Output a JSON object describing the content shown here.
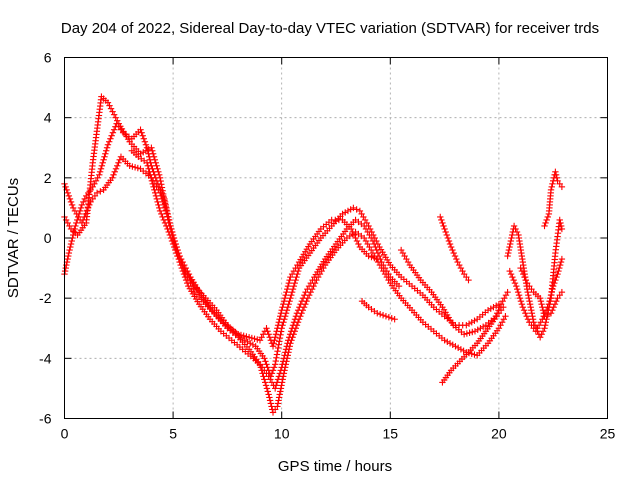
{
  "chart_data": {
    "type": "scatter",
    "title": "Day 204 of 2022, Sidereal Day-to-day VTEC variation (SDTVAR) for receiver trds",
    "xlabel": "GPS time / hours",
    "ylabel": "SDTVAR / TECUs",
    "xlim": [
      0,
      25
    ],
    "ylim": [
      -6,
      6
    ],
    "xticks": [
      0,
      5,
      10,
      15,
      20,
      25
    ],
    "yticks": [
      -6,
      -4,
      -2,
      0,
      2,
      4,
      6
    ],
    "xtick_labels": [
      "0",
      "5",
      "10",
      "15",
      "20",
      "25"
    ],
    "ytick_labels": [
      "-6",
      "-4",
      "-2",
      "0",
      "2",
      "4",
      "6"
    ],
    "grid": true,
    "marker": "+",
    "color": "#ff0000",
    "series": [
      {
        "name": "track-1",
        "points": [
          [
            0,
            0.7
          ],
          [
            0.3,
            0.3
          ],
          [
            0.6,
            0.1
          ],
          [
            1,
            0.5
          ],
          [
            1.3,
            2.5
          ],
          [
            1.7,
            4.7
          ],
          [
            2,
            4.5
          ],
          [
            2.5,
            3.8
          ],
          [
            3,
            3.2
          ],
          [
            3.5,
            2.8
          ],
          [
            4,
            3.0
          ],
          [
            4.4,
            2.0
          ],
          [
            4.8,
            0.5
          ],
          [
            5.3,
            -0.6
          ],
          [
            5.8,
            -1.3
          ],
          [
            6.3,
            -1.9
          ],
          [
            6.8,
            -2.4
          ],
          [
            7.3,
            -2.8
          ],
          [
            7.8,
            -3.1
          ],
          [
            8.3,
            -3.4
          ],
          [
            8.8,
            -3.6
          ],
          [
            9.2,
            -4.0
          ],
          [
            9.5,
            -4.6
          ],
          [
            9.7,
            -4.2
          ],
          [
            10,
            -3.0
          ],
          [
            10.4,
            -2.0
          ],
          [
            10.8,
            -1.0
          ],
          [
            11.3,
            -0.5
          ],
          [
            11.8,
            0.0
          ],
          [
            12.3,
            0.4
          ],
          [
            12.8,
            0.8
          ],
          [
            13.3,
            1.0
          ],
          [
            13.6,
            0.9
          ],
          [
            14,
            0.4
          ],
          [
            14.5,
            -0.3
          ],
          [
            15,
            -0.9
          ],
          [
            15.5,
            -1.3
          ],
          [
            16,
            -1.6
          ],
          [
            16.5,
            -1.9
          ],
          [
            17,
            -2.3
          ],
          [
            17.5,
            -2.6
          ],
          [
            18,
            -2.9
          ],
          [
            18.5,
            -2.9
          ],
          [
            19,
            -2.7
          ],
          [
            19.5,
            -2.4
          ],
          [
            20,
            -2.2
          ]
        ]
      },
      {
        "name": "track-2",
        "points": [
          [
            0,
            1.8
          ],
          [
            0.4,
            1.0
          ],
          [
            0.8,
            0.5
          ],
          [
            1.2,
            1.2
          ],
          [
            1.5,
            1.5
          ],
          [
            1.8,
            1.6
          ],
          [
            2.2,
            2.0
          ],
          [
            2.6,
            2.7
          ],
          [
            3.0,
            2.4
          ],
          [
            3.5,
            2.3
          ],
          [
            4.0,
            2.0
          ],
          [
            4.4,
            1.5
          ],
          [
            4.8,
            0.6
          ],
          [
            5.2,
            -0.4
          ],
          [
            5.6,
            -1.2
          ],
          [
            6.0,
            -1.8
          ],
          [
            6.5,
            -2.2
          ],
          [
            7.0,
            -2.6
          ],
          [
            7.5,
            -3.0
          ],
          [
            8.0,
            -3.3
          ],
          [
            8.5,
            -3.7
          ],
          [
            9.0,
            -4.2
          ],
          [
            9.4,
            -5.2
          ],
          [
            9.6,
            -5.8
          ],
          [
            9.8,
            -5.6
          ],
          [
            10.1,
            -4.5
          ],
          [
            10.4,
            -3.5
          ],
          [
            10.8,
            -2.7
          ],
          [
            11.2,
            -2.0
          ],
          [
            11.6,
            -1.4
          ],
          [
            12.0,
            -0.9
          ],
          [
            12.5,
            -0.4
          ],
          [
            13.0,
            0.0
          ],
          [
            13.4,
            0.2
          ],
          [
            13.8,
            0.0
          ],
          [
            14.2,
            -0.5
          ],
          [
            14.6,
            -1.0
          ],
          [
            15.0,
            -1.5
          ],
          [
            15.5,
            -2.0
          ],
          [
            16.0,
            -2.4
          ],
          [
            16.5,
            -2.8
          ],
          [
            17.0,
            -3.1
          ],
          [
            17.5,
            -3.4
          ],
          [
            18.0,
            -3.6
          ],
          [
            18.5,
            -3.8
          ],
          [
            19.0,
            -3.9
          ],
          [
            19.5,
            -3.5
          ],
          [
            20.0,
            -3.0
          ],
          [
            20.3,
            -2.6
          ]
        ]
      },
      {
        "name": "track-3",
        "points": [
          [
            0,
            -1.2
          ],
          [
            0.2,
            -0.5
          ],
          [
            0.5,
            0.4
          ],
          [
            0.8,
            1.1
          ],
          [
            1.0,
            1.4
          ],
          [
            1.3,
            1.7
          ],
          [
            1.6,
            2.1
          ],
          [
            2.0,
            3.1
          ],
          [
            2.4,
            3.8
          ],
          [
            2.7,
            3.5
          ],
          [
            3.1,
            3.3
          ],
          [
            3.5,
            3.6
          ],
          [
            3.8,
            3.0
          ],
          [
            4.0,
            2.4
          ],
          [
            4.3,
            1.8
          ],
          [
            4.6,
            1.3
          ],
          [
            5.0,
            0.0
          ],
          [
            5.3,
            -0.8
          ],
          [
            5.7,
            -1.6
          ],
          [
            6.2,
            -2.2
          ],
          [
            6.7,
            -2.7
          ],
          [
            7.2,
            -3.1
          ],
          [
            7.7,
            -3.4
          ],
          [
            8.2,
            -3.7
          ],
          [
            8.7,
            -4.0
          ],
          [
            9.1,
            -4.3
          ],
          [
            9.4,
            -4.6
          ],
          [
            9.7,
            -5.0
          ],
          [
            10.0,
            -4.3
          ],
          [
            10.3,
            -3.4
          ],
          [
            10.7,
            -2.5
          ],
          [
            11.1,
            -1.8
          ],
          [
            11.5,
            -1.3
          ],
          [
            12.0,
            -0.7
          ],
          [
            12.5,
            -0.2
          ],
          [
            13.0,
            0.3
          ],
          [
            13.4,
            0.6
          ],
          [
            13.8,
            0.4
          ],
          [
            14.2,
            -0.1
          ],
          [
            14.6,
            -0.8
          ],
          [
            15.0,
            -1.3
          ],
          [
            15.4,
            -1.6
          ]
        ]
      },
      {
        "name": "track-4",
        "points": [
          [
            3.1,
            2.9
          ],
          [
            3.4,
            2.7
          ],
          [
            3.8,
            2.5
          ],
          [
            4.1,
            1.7
          ],
          [
            4.4,
            0.9
          ],
          [
            4.8,
            0.2
          ],
          [
            5.2,
            -0.6
          ],
          [
            5.6,
            -1.1
          ],
          [
            6.0,
            -1.6
          ],
          [
            6.5,
            -2.0
          ],
          [
            7.0,
            -2.4
          ],
          [
            7.5,
            -2.9
          ],
          [
            8.0,
            -3.2
          ],
          [
            8.5,
            -3.3
          ],
          [
            9.0,
            -3.4
          ],
          [
            9.3,
            -3.0
          ],
          [
            9.6,
            -3.6
          ],
          [
            10.0,
            -2.4
          ],
          [
            10.4,
            -1.3
          ],
          [
            10.8,
            -0.8
          ],
          [
            11.3,
            -0.2
          ],
          [
            11.8,
            0.3
          ],
          [
            12.3,
            0.6
          ],
          [
            12.8,
            0.6
          ],
          [
            13.2,
            0.3
          ],
          [
            13.6,
            -0.3
          ],
          [
            14.0,
            -0.6
          ],
          [
            14.4,
            -0.7
          ]
        ]
      },
      {
        "name": "track-5",
        "points": [
          [
            13.7,
            -2.1
          ],
          [
            14.0,
            -2.3
          ],
          [
            14.4,
            -2.5
          ],
          [
            14.8,
            -2.6
          ],
          [
            15.2,
            -2.7
          ]
        ]
      },
      {
        "name": "track-6",
        "points": [
          [
            15.5,
            -0.4
          ],
          [
            15.9,
            -0.9
          ],
          [
            16.4,
            -1.4
          ],
          [
            16.9,
            -1.8
          ],
          [
            17.4,
            -2.3
          ],
          [
            17.9,
            -2.9
          ],
          [
            18.4,
            -3.2
          ],
          [
            18.9,
            -3.1
          ],
          [
            19.4,
            -2.9
          ],
          [
            19.9,
            -2.6
          ],
          [
            20.2,
            -2.3
          ]
        ]
      },
      {
        "name": "track-7",
        "points": [
          [
            17.4,
            -4.8
          ],
          [
            17.8,
            -4.4
          ],
          [
            18.2,
            -4.1
          ],
          [
            18.6,
            -3.8
          ],
          [
            19.0,
            -3.5
          ],
          [
            19.4,
            -3.1
          ],
          [
            19.8,
            -2.7
          ],
          [
            20.1,
            -2.2
          ],
          [
            20.4,
            -1.8
          ]
        ]
      },
      {
        "name": "track-8",
        "points": [
          [
            17.3,
            0.7
          ],
          [
            17.5,
            0.3
          ],
          [
            17.8,
            -0.3
          ],
          [
            18.1,
            -0.8
          ],
          [
            18.4,
            -1.2
          ],
          [
            18.6,
            -1.4
          ]
        ]
      },
      {
        "name": "track-9",
        "points": [
          [
            20.4,
            -0.6
          ],
          [
            20.7,
            0.4
          ],
          [
            20.9,
            0.1
          ],
          [
            21.1,
            -0.8
          ],
          [
            21.3,
            -1.7
          ],
          [
            21.6,
            -2.8
          ],
          [
            21.9,
            -3.3
          ],
          [
            22.1,
            -3.0
          ],
          [
            22.4,
            -2.0
          ],
          [
            22.6,
            -0.5
          ],
          [
            22.8,
            0.6
          ],
          [
            22.9,
            0.3
          ]
        ]
      },
      {
        "name": "track-10",
        "points": [
          [
            20.5,
            -1.1
          ],
          [
            20.8,
            -1.6
          ],
          [
            21.1,
            -2.3
          ],
          [
            21.4,
            -2.8
          ],
          [
            21.7,
            -3.1
          ],
          [
            22.0,
            -2.7
          ],
          [
            22.3,
            -2.2
          ],
          [
            22.5,
            -1.6
          ],
          [
            22.7,
            -1.2
          ],
          [
            22.9,
            -0.7
          ]
        ]
      },
      {
        "name": "track-11",
        "points": [
          [
            21.0,
            -1.0
          ],
          [
            21.3,
            -1.5
          ],
          [
            21.6,
            -1.8
          ],
          [
            21.9,
            -2.0
          ],
          [
            22.1,
            -2.6
          ],
          [
            22.4,
            -2.5
          ],
          [
            22.7,
            -2.0
          ],
          [
            22.9,
            -1.8
          ]
        ]
      },
      {
        "name": "track-12",
        "points": [
          [
            22.1,
            0.4
          ],
          [
            22.3,
            0.8
          ],
          [
            22.4,
            1.6
          ],
          [
            22.6,
            2.2
          ],
          [
            22.7,
            1.9
          ],
          [
            22.9,
            1.7
          ]
        ]
      }
    ]
  }
}
